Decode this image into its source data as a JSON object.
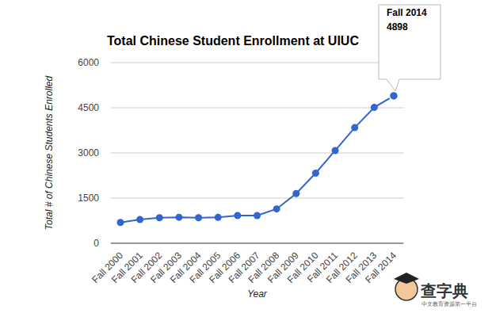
{
  "chart_data": {
    "type": "line",
    "title": "Total Chinese Student Enrollment at UIUC",
    "x_label": "Year",
    "y_label": "Total # of Chinese Students Enrolled",
    "categories": [
      "Fall 2000",
      "Fall 2001",
      "Fall 2002",
      "Fall 2003",
      "Fall 2004",
      "Fall 2005",
      "Fall 2006",
      "Fall 2007",
      "Fall 2008",
      "Fall 2009",
      "Fall 2010",
      "Fall 2011",
      "Fall 2012",
      "Fall 2013",
      "Fall 2014"
    ],
    "values": [
      690,
      790,
      850,
      865,
      850,
      860,
      920,
      920,
      1140,
      1650,
      2330,
      3080,
      3840,
      4510,
      4898
    ],
    "color": "#3366cc",
    "marker": "circle",
    "ylim": [
      0,
      6000
    ],
    "yticks": [
      0,
      1500,
      3000,
      4500,
      6000
    ],
    "grid": true,
    "watermark": {
      "title": "查字典",
      "subtitle": "中文教育资源第一平台"
    }
  }
}
